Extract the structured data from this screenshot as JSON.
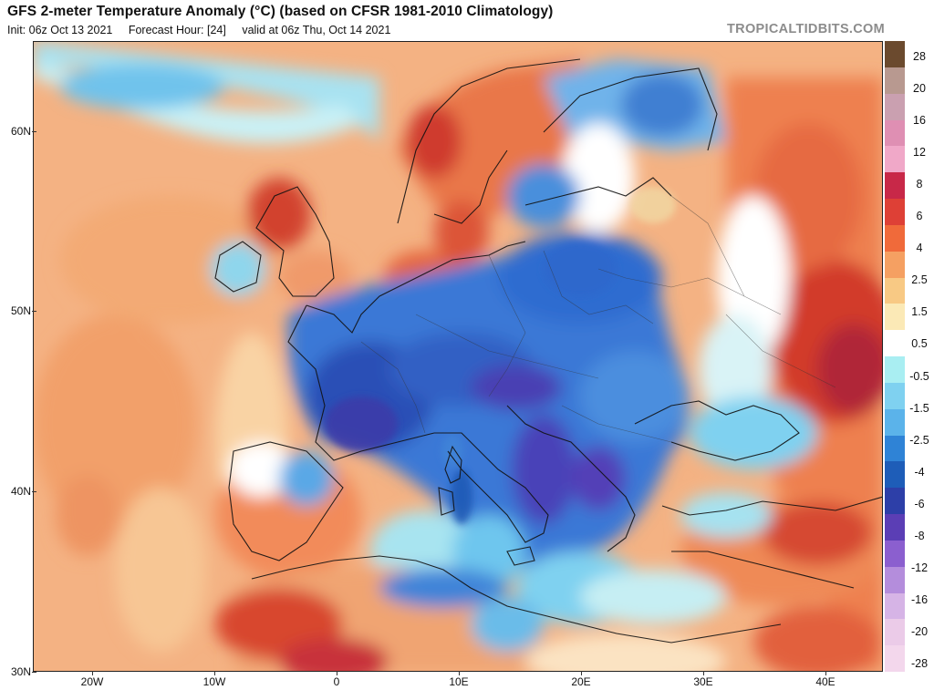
{
  "header": {
    "title": "GFS 2-meter Temperature Anomaly (°C) (based on CFSR 1981-2010 Climatology)",
    "init": "Init: 06z Oct 13 2021",
    "forecast_hour": "Forecast Hour: [24]",
    "valid": "valid at 06z Thu, Oct 14 2021",
    "brand": "TROPICALTIDBITS.COM"
  },
  "axes": {
    "lat_labels": [
      "60N",
      "50N",
      "40N",
      "30N"
    ],
    "lon_labels": [
      "20W",
      "10W",
      "0",
      "10E",
      "20E",
      "30E",
      "40E"
    ]
  },
  "colorbar": {
    "labels": [
      "28",
      "20",
      "16",
      "12",
      "8",
      "6",
      "4",
      "2.5",
      "1.5",
      "0.5",
      "-0.5",
      "-1.5",
      "-2.5",
      "-4",
      "-6",
      "-8",
      "-12",
      "-16",
      "-20",
      "-28"
    ],
    "colors": [
      "#6b4a2e",
      "#b89990",
      "#caa0b0",
      "#df8fb3",
      "#f0a8c8",
      "#c82848",
      "#de4036",
      "#f06a3a",
      "#f5a062",
      "#f8c984",
      "#fbe9b6",
      "#ffffff",
      "#a9eef2",
      "#7fd1f0",
      "#5bb3ea",
      "#2f83d6",
      "#1e5db8",
      "#2d3fa8",
      "#5b3eb5",
      "#8b5fcf",
      "#b48ddc",
      "#d6b4e6",
      "#ebcbe8",
      "#f3d7ec"
    ]
  },
  "colors": {
    "brand": "#8c8c8c",
    "ocean_warm": "#f6b98b",
    "cold": "#2f5fc0",
    "hot": "#d9472c"
  }
}
